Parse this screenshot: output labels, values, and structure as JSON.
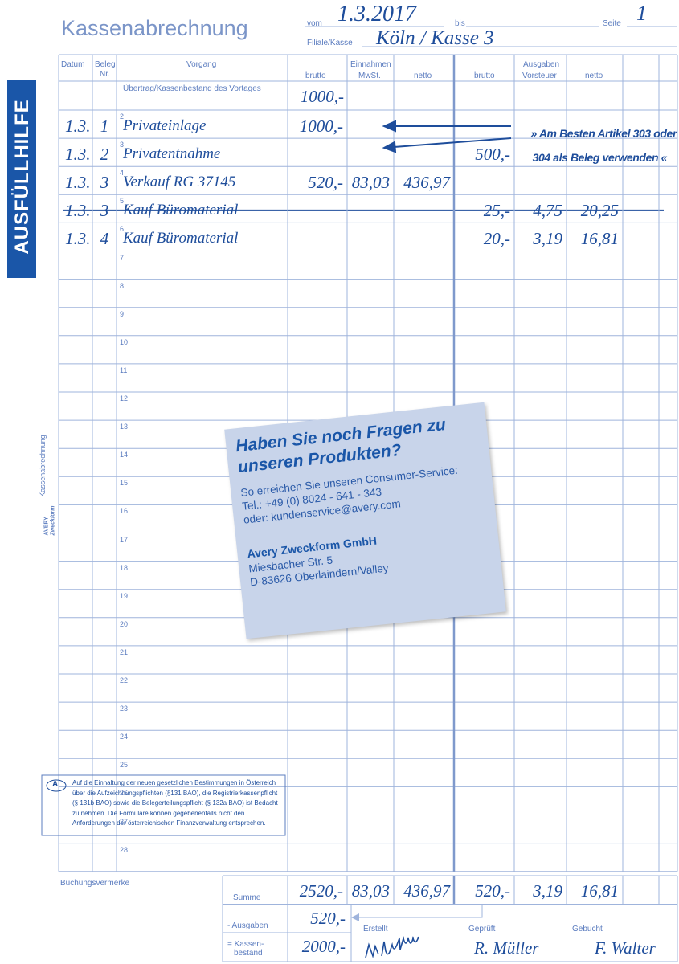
{
  "header": {
    "title": "Kassenabrechnung",
    "vom_label": "vom",
    "vom": "1.3.2017",
    "bis_label": "bis",
    "seite_label": "Seite",
    "seite": "1",
    "filiale_label": "Filiale/Kasse",
    "filiale": "Köln / Kasse 3"
  },
  "banner": "AUSFÜLLHILFE",
  "side_label": "Kassenabrechnung",
  "brand_logo": [
    "AVERY",
    "Zweckform"
  ],
  "columns": {
    "datum": "Datum",
    "beleg": [
      "Beleg",
      "Nr."
    ],
    "vorgang": "Vorgang",
    "einnahmen": "Einnahmen",
    "ausgaben": "Ausgaben",
    "ein_brutto": "brutto",
    "mwst": "MwSt.",
    "ein_netto": "netto",
    "aus_brutto": "brutto",
    "vorsteuer": "Vorsteuer",
    "aus_netto": "netto"
  },
  "carry_over": {
    "label": "Übertrag/Kassenbestand des Vortages",
    "ein_brutto": "1000,-"
  },
  "rows": [
    {
      "no": "2",
      "datum": "1.3.",
      "beleg": "1",
      "vorgang": "Privateinlage",
      "ein_brutto": "1000,-"
    },
    {
      "no": "3",
      "datum": "1.3.",
      "beleg": "2",
      "vorgang": "Privatentnahme",
      "aus_brutto": "500,-"
    },
    {
      "no": "4",
      "datum": "1.3.",
      "beleg": "3",
      "vorgang": "Verkauf RG 37145",
      "ein_brutto": "520,-",
      "mwst": "83,03",
      "ein_netto": "436,97"
    },
    {
      "no": "5",
      "datum": "1.3.",
      "beleg": "3",
      "vorgang": "Kauf Büromaterial",
      "aus_brutto": "25,-",
      "vorsteuer": "4,75",
      "aus_netto": "20,25",
      "struck_through": true
    },
    {
      "no": "6",
      "datum": "1.3.",
      "beleg": "4",
      "vorgang": "Kauf Büromaterial",
      "aus_brutto": "20,-",
      "vorsteuer": "3,19",
      "aus_netto": "16,81"
    },
    {
      "no": "7"
    },
    {
      "no": "8"
    },
    {
      "no": "9"
    },
    {
      "no": "10"
    },
    {
      "no": "11"
    },
    {
      "no": "12"
    },
    {
      "no": "13"
    },
    {
      "no": "14"
    },
    {
      "no": "15"
    },
    {
      "no": "16"
    },
    {
      "no": "17"
    },
    {
      "no": "18"
    },
    {
      "no": "19"
    },
    {
      "no": "20"
    },
    {
      "no": "21"
    },
    {
      "no": "22"
    },
    {
      "no": "23"
    },
    {
      "no": "24"
    },
    {
      "no": "25"
    },
    {
      "no": "26"
    },
    {
      "no": "27"
    },
    {
      "no": "28"
    }
  ],
  "annotation": [
    "» Am Besten Artikel 303 oder",
    "304 als Beleg verwenden «"
  ],
  "sticky_note": {
    "heading": [
      "Haben Sie noch Fragen zu",
      "unseren Produkten?"
    ],
    "lines": [
      "So erreichen Sie unseren Consumer-Service:",
      "Tel.: +49 (0) 8024 - 641 - 343",
      "oder:  kundenservice@avery.com"
    ],
    "company": "Avery Zweckform GmbH",
    "address": [
      "Miesbacher Str. 5",
      "D-83626 Oberlaindern/Valley"
    ]
  },
  "austria_note": {
    "badge": "A",
    "text": "Auf die Einhaltung der neuen gesetzlichen Bestimmungen in Österreich über die Aufzeichnungspflichten (§131 BAO), die Registrierkassenpflicht (§ 131b BAO) sowie die Belegerteilungspflicht (§ 132a BAO) ist Bedacht zu nehmen. Die Formulare können gegebenenfalls nicht den Anforderungen der österreichischen Finanzverwaltung entsprechen."
  },
  "footer": {
    "buchungsvermerke": "Buchungsvermerke",
    "summe_label": "Summe",
    "summe": {
      "ein_brutto": "2520,-",
      "mwst": "83,03",
      "ein_netto": "436,97",
      "aus_brutto": "520,-",
      "vorsteuer": "3,19",
      "aus_netto": "16,81"
    },
    "ausgaben_label": "- Ausgaben",
    "ausgaben": "520,-",
    "bestand_label": [
      "= Kassen-",
      "bestand"
    ],
    "bestand": "2000,-",
    "erstellt_label": "Erstellt",
    "geprueft_label": "Geprüft",
    "geprueft": "R. Müller",
    "gebucht_label": "Gebucht",
    "gebucht": "F. Walter"
  }
}
